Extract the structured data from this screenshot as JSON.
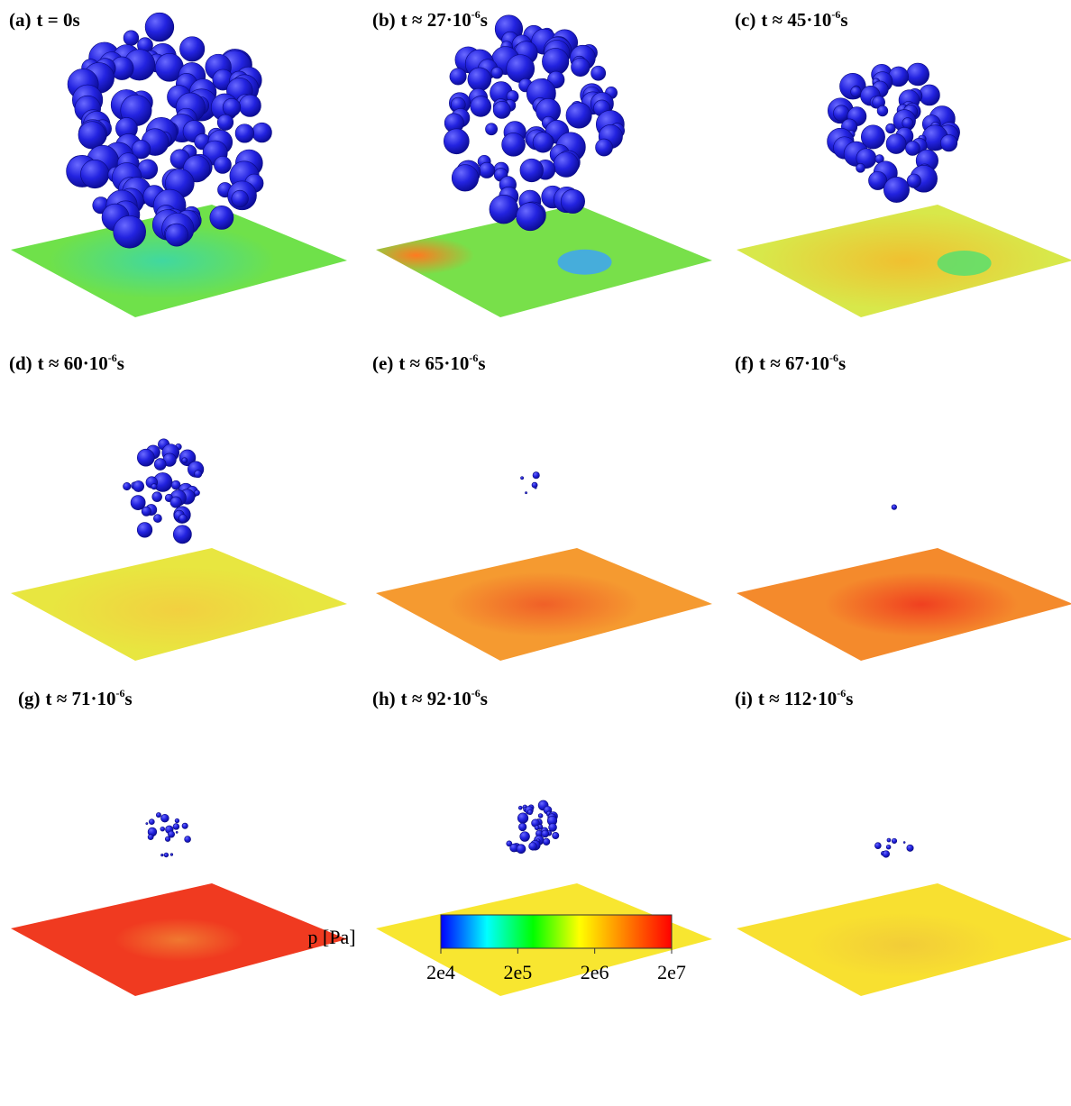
{
  "panels": [
    {
      "label": "(a)",
      "time": "t = 0s"
    },
    {
      "label": "(b)",
      "time": "t ≈ 27·10",
      "exponent": "-6",
      "unit": "s"
    },
    {
      "label": "(c)",
      "time": "t ≈ 45·10",
      "exponent": "-6",
      "unit": "s"
    },
    {
      "label": "(d)",
      "time": "t ≈ 60·10",
      "exponent": "-6",
      "unit": "s"
    },
    {
      "label": "(e)",
      "time": "t ≈ 65·10",
      "exponent": "-6",
      "unit": "s"
    },
    {
      "label": "(f)",
      "time": "t ≈ 67·10",
      "exponent": "-6",
      "unit": "s"
    },
    {
      "label": "(g)",
      "time": "t ≈ 71·10",
      "exponent": "-6",
      "unit": "s"
    },
    {
      "label": "(h)",
      "time": "t ≈ 92·10",
      "exponent": "-6",
      "unit": "s"
    },
    {
      "label": "(i)",
      "time": "t ≈ 112·10",
      "exponent": "-6",
      "unit": "s"
    }
  ],
  "colorbar": {
    "title": "p [Pa]",
    "log_scale": true,
    "lim": [
      20000,
      20000000
    ],
    "ticks": [
      {
        "value": 20000,
        "label": "2e4"
      },
      {
        "value": 200000,
        "label": "2e5"
      },
      {
        "value": 2000000,
        "label": "2e6"
      },
      {
        "value": 20000000,
        "label": "2e7"
      }
    ],
    "colors": [
      "#0000ff",
      "#00ffff",
      "#00ff00",
      "#ffff00",
      "#ff8000",
      "#ff0000"
    ]
  }
}
